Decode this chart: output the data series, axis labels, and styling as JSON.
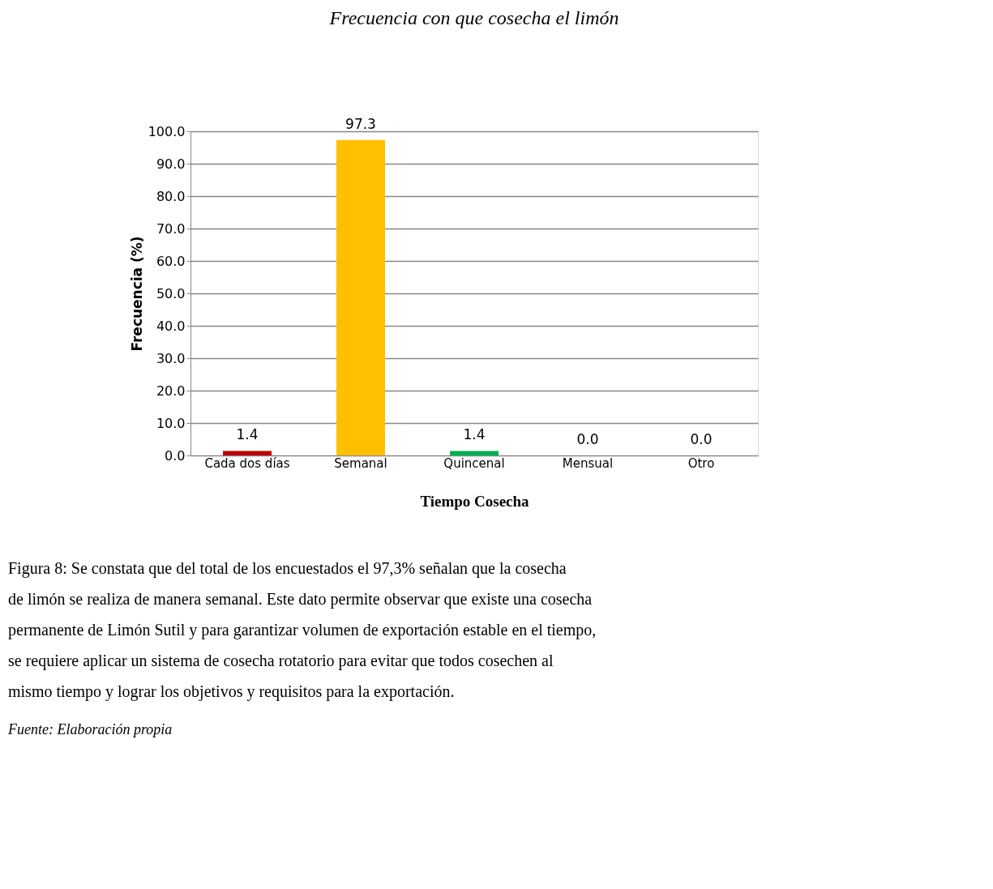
{
  "chart_data": {
    "type": "bar",
    "title": "Frecuencia con que cosecha el limón",
    "xlabel": "Tiempo Cosecha",
    "ylabel": "Frecuencia (%)",
    "categories": [
      "Cada dos días",
      "Semanal",
      "Quincenal",
      "Mensual",
      "Otro"
    ],
    "values": [
      1.4,
      97.3,
      1.4,
      0,
      0
    ],
    "value_labels": [
      "1.4",
      "97.3",
      "1.4",
      "0.0",
      "0.0"
    ],
    "colors": [
      "#c00000",
      "#ffc000",
      "#00b050",
      "#c55a11",
      "#4f81bd"
    ],
    "ylim": [
      0,
      100
    ],
    "yticks": [
      {
        "value": 0,
        "label": "0.0"
      },
      {
        "value": 10,
        "label": "10.0"
      },
      {
        "value": 20,
        "label": "20.0"
      },
      {
        "value": 30,
        "label": "30.0"
      },
      {
        "value": 40,
        "label": "40.0"
      },
      {
        "value": 50,
        "label": "50.0"
      },
      {
        "value": 60,
        "label": "60.0"
      },
      {
        "value": 70,
        "label": "70.0"
      },
      {
        "value": 80,
        "label": "80.0"
      },
      {
        "value": 90,
        "label": "90.0"
      },
      {
        "value": 100,
        "label": "100.0"
      }
    ],
    "grid": "y",
    "annotations": [
      "Figura 8: Se constata que del total de los encuestados el 97,3% señalan que la cosecha de limón se realiza de manera semanal. Este dato permite observar que existe una cosecha permanente de Limón Sutil y para garantizar volumen de exportación estable en el tiempo, se requiere aplicar un sistema de cosecha rotatorio para evitar que todos cosechen al mismo tiempo y lograr los objetivos y requisitos para la exportación.",
      "Fuente: Elaboración propia"
    ]
  }
}
